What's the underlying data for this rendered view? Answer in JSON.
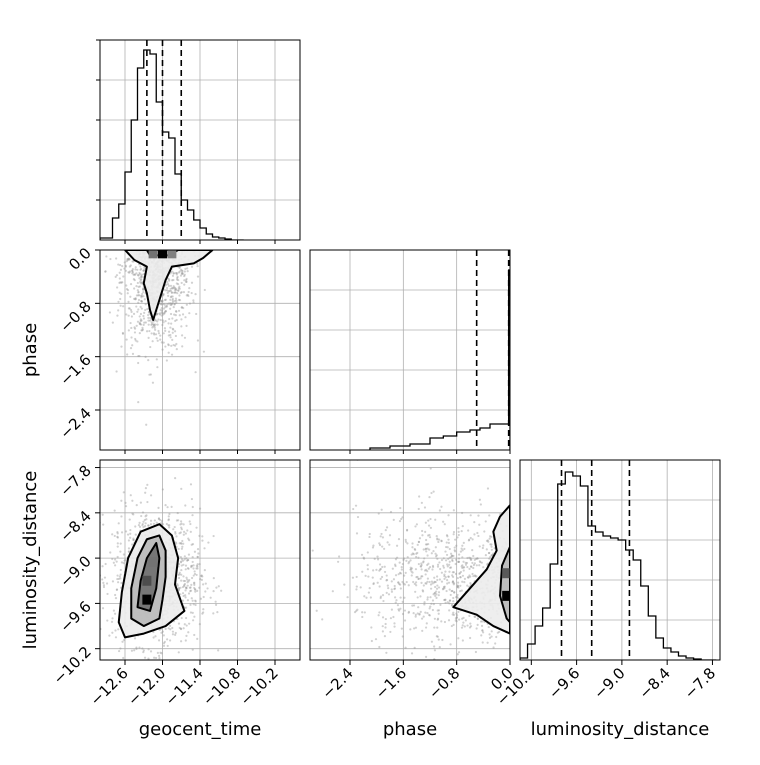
{
  "chart_data": {
    "type": "corner",
    "grid": true,
    "parameters": [
      {
        "name": "geocent_time",
        "xlabel": "geocent_time",
        "range": [
          -13.0,
          -9.8
        ],
        "ticks": [
          -12.6,
          -12.0,
          -11.4,
          -10.8,
          -10.2
        ],
        "tick_labels": [
          "−12.6",
          "−12.0",
          "−11.4",
          "−10.8",
          "−10.2"
        ],
        "quantiles": [
          -12.25,
          -12.0,
          -11.7
        ]
      },
      {
        "name": "phase",
        "xlabel": "phase",
        "ylabel": "phase",
        "range": [
          -3.0,
          0.0
        ],
        "ticks": [
          -2.4,
          -1.6,
          -0.8,
          0.0
        ],
        "tick_labels": [
          "−2.4",
          "−1.6",
          "−0.8",
          "0.0"
        ],
        "quantiles": [
          -0.5,
          -0.02,
          0.0
        ]
      },
      {
        "name": "luminosity_distance",
        "xlabel": "luminosity_distance",
        "ylabel": "luminosity_distance",
        "range": [
          -10.35,
          -7.7
        ],
        "ticks": [
          -10.2,
          -9.6,
          -9.0,
          -8.4,
          -7.8
        ],
        "tick_labels": [
          "−10.2",
          "−9.6",
          "−9.0",
          "−8.4",
          "−7.8"
        ],
        "quantiles": [
          -9.8,
          -9.4,
          -8.9
        ]
      }
    ],
    "histograms": [
      {
        "parameter": "geocent_time",
        "bin_edges": [
          -13.0,
          -12.8,
          -12.7,
          -12.6,
          -12.5,
          -12.4,
          -12.3,
          -12.2,
          -12.1,
          -12.0,
          -11.9,
          -11.8,
          -11.7,
          -11.6,
          -11.5,
          -11.4,
          -11.3,
          -11.2,
          -11.1,
          -11.0,
          -10.9,
          -10.7
        ],
        "counts": [
          0.01,
          0.11,
          0.18,
          0.34,
          0.6,
          0.86,
          0.95,
          0.93,
          0.69,
          0.54,
          0.51,
          0.33,
          0.2,
          0.15,
          0.1,
          0.06,
          0.03,
          0.015,
          0.01,
          0.005,
          0.0
        ]
      },
      {
        "parameter": "phase",
        "bin_edges": [
          -2.1,
          -1.8,
          -1.5,
          -1.2,
          -1.0,
          -0.8,
          -0.6,
          -0.45,
          -0.3,
          -0.15,
          -0.02,
          0.0
        ],
        "counts": [
          0.01,
          0.02,
          0.03,
          0.06,
          0.07,
          0.09,
          0.1,
          0.11,
          0.13,
          0.13,
          0.9
        ]
      },
      {
        "parameter": "luminosity_distance",
        "bin_edges": [
          -10.35,
          -10.25,
          -10.15,
          -10.05,
          -9.95,
          -9.85,
          -9.75,
          -9.65,
          -9.55,
          -9.45,
          -9.35,
          -9.25,
          -9.15,
          -9.05,
          -8.95,
          -8.85,
          -8.75,
          -8.65,
          -8.55,
          -8.45,
          -8.35,
          -8.25,
          -8.15,
          -8.05,
          -7.95,
          -7.85,
          -7.75
        ],
        "counts": [
          0.01,
          0.08,
          0.17,
          0.26,
          0.48,
          0.88,
          0.94,
          0.92,
          0.87,
          0.67,
          0.64,
          0.62,
          0.61,
          0.6,
          0.55,
          0.5,
          0.37,
          0.22,
          0.11,
          0.06,
          0.04,
          0.02,
          0.01,
          0.005,
          0.0,
          0.0
        ]
      }
    ],
    "joint_panels": [
      {
        "x": "geocent_time",
        "y": "phase",
        "mode": {
          "x": -12.0,
          "y": -0.05
        },
        "contours": [
          [
            [
              -12.6,
              0.0
            ],
            [
              -12.45,
              -0.15
            ],
            [
              -12.25,
              -0.25
            ],
            [
              -12.3,
              -0.5
            ],
            [
              -12.25,
              -0.65
            ],
            [
              -12.2,
              -0.9
            ],
            [
              -12.15,
              -1.05
            ],
            [
              -12.05,
              -0.75
            ],
            [
              -11.95,
              -0.45
            ],
            [
              -11.85,
              -0.25
            ],
            [
              -11.5,
              -0.2
            ],
            [
              -11.35,
              -0.12
            ],
            [
              -11.2,
              0.0
            ]
          ],
          [
            [
              -12.25,
              0.0
            ],
            [
              -12.2,
              -0.08
            ],
            [
              -11.9,
              -0.08
            ],
            [
              -11.75,
              0.0
            ]
          ]
        ],
        "dense_cells": [
          {
            "x": -12.0,
            "y": -0.05,
            "density": 1.0
          },
          {
            "x": -12.15,
            "y": -0.05,
            "density": 0.55
          },
          {
            "x": -11.85,
            "y": -0.05,
            "density": 0.5
          }
        ]
      },
      {
        "x": "geocent_time",
        "y": "luminosity_distance",
        "mode": {
          "x": -12.3,
          "y": -9.55
        },
        "contours": [
          [
            [
              -12.7,
              -9.85
            ],
            [
              -12.65,
              -9.45
            ],
            [
              -12.55,
              -9.0
            ],
            [
              -12.35,
              -8.65
            ],
            [
              -12.05,
              -8.55
            ],
            [
              -11.85,
              -8.7
            ],
            [
              -11.75,
              -9.0
            ],
            [
              -11.8,
              -9.35
            ],
            [
              -11.65,
              -9.7
            ],
            [
              -11.95,
              -9.9
            ],
            [
              -12.3,
              -10.0
            ],
            [
              -12.6,
              -10.05
            ]
          ],
          [
            [
              -12.5,
              -9.8
            ],
            [
              -12.5,
              -9.4
            ],
            [
              -12.4,
              -9.0
            ],
            [
              -12.25,
              -8.75
            ],
            [
              -12.05,
              -8.7
            ],
            [
              -11.95,
              -8.9
            ],
            [
              -11.95,
              -9.25
            ],
            [
              -12.0,
              -9.55
            ],
            [
              -12.05,
              -9.8
            ],
            [
              -12.3,
              -9.9
            ]
          ],
          [
            [
              -12.4,
              -9.65
            ],
            [
              -12.35,
              -9.3
            ],
            [
              -12.25,
              -9.0
            ],
            [
              -12.1,
              -8.8
            ],
            [
              -12.05,
              -9.0
            ],
            [
              -12.1,
              -9.4
            ],
            [
              -12.2,
              -9.7
            ]
          ]
        ],
        "dense_cells": [
          {
            "x": -12.25,
            "y": -9.55,
            "density": 1.0
          },
          {
            "x": -12.25,
            "y": -9.3,
            "density": 0.7
          },
          {
            "x": -12.15,
            "y": -9.05,
            "density": 0.55
          }
        ]
      },
      {
        "x": "phase",
        "y": "luminosity_distance",
        "mode": {
          "x": -0.05,
          "y": -9.5
        },
        "contours": [
          [
            [
              0.0,
              -8.3
            ],
            [
              -0.15,
              -8.45
            ],
            [
              -0.25,
              -8.65
            ],
            [
              -0.2,
              -8.9
            ],
            [
              -0.35,
              -9.15
            ],
            [
              -0.6,
              -9.4
            ],
            [
              -0.85,
              -9.65
            ],
            [
              -0.5,
              -9.75
            ],
            [
              -0.25,
              -9.9
            ],
            [
              0.0,
              -10.0
            ]
          ],
          [
            [
              0.0,
              -8.85
            ],
            [
              -0.12,
              -9.1
            ],
            [
              -0.15,
              -9.5
            ],
            [
              -0.05,
              -9.8
            ],
            [
              0.0,
              -9.85
            ]
          ]
        ],
        "dense_cells": [
          {
            "x": -0.05,
            "y": -9.5,
            "density": 1.0
          },
          {
            "x": -0.05,
            "y": -9.2,
            "density": 0.65
          }
        ]
      }
    ],
    "scatter": [
      {
        "x": "geocent_time",
        "y": "phase",
        "center": [
          -12.1,
          -0.55
        ],
        "spread": [
          0.28,
          0.6
        ],
        "n": 900
      },
      {
        "x": "geocent_time",
        "y": "luminosity_distance",
        "center": [
          -12.1,
          -9.25
        ],
        "spread": [
          0.35,
          0.45
        ],
        "n": 1200
      },
      {
        "x": "phase",
        "y": "luminosity_distance",
        "center": [
          -0.9,
          -9.3
        ],
        "spread": [
          0.7,
          0.45
        ],
        "n": 900
      }
    ]
  },
  "colors": {
    "line": "#000000",
    "grid": "#b0b0b0",
    "scatter": "#9a9a9a",
    "contour_fill_outer": "#ececec",
    "contour_fill_mid": "#b8b8b8",
    "contour_fill_inner": "#6e6e6e",
    "mode": "#000000"
  }
}
